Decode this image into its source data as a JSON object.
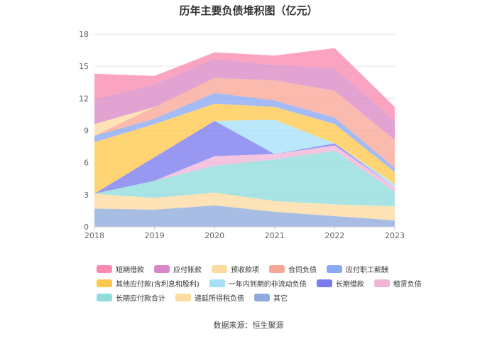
{
  "source": "数据来源：恒生聚源",
  "chart_data": {
    "type": "area",
    "stacked": true,
    "title": "历年主要负债堆积图（亿元）",
    "xlabel": "",
    "ylabel": "",
    "categories": [
      "2018",
      "2019",
      "2020",
      "2021",
      "2022",
      "2023"
    ],
    "ylim": [
      0,
      18
    ],
    "yticks": [
      0,
      3,
      6,
      9,
      12,
      15,
      18
    ],
    "grid": true,
    "legend_position": "bottom",
    "series": [
      {
        "name": "其它",
        "color": "#8faadc",
        "values": [
          1.7,
          1.6,
          2.0,
          1.4,
          1.0,
          0.6
        ]
      },
      {
        "name": "递延所得税负债",
        "color": "#fddba0",
        "values": [
          1.4,
          1.1,
          1.2,
          1.0,
          1.1,
          1.3
        ]
      },
      {
        "name": "长期应付款合计",
        "color": "#8fdcdc",
        "values": [
          0.0,
          1.6,
          2.5,
          3.9,
          5.0,
          1.4
        ]
      },
      {
        "name": "租赁负债",
        "color": "#f0b5d8",
        "values": [
          0.0,
          0.0,
          0.9,
          0.5,
          0.5,
          0.4
        ]
      },
      {
        "name": "长期借款",
        "color": "#7b7bf0",
        "values": [
          0.0,
          2.2,
          3.3,
          0.0,
          0.2,
          0.0
        ]
      },
      {
        "name": "一年内到期的非流动负债",
        "color": "#a6e0f7",
        "values": [
          0.0,
          0.0,
          0.0,
          3.2,
          0.0,
          0.3
        ]
      },
      {
        "name": "其他应付款(含利息和股利)",
        "color": "#ffc84d",
        "values": [
          4.8,
          3.1,
          1.6,
          1.2,
          1.8,
          1.1
        ]
      },
      {
        "name": "应付职工薪酬",
        "color": "#8ba8f3",
        "values": [
          0.6,
          0.5,
          1.0,
          0.6,
          0.6,
          0.4
        ]
      },
      {
        "name": "合同负债",
        "color": "#f8a697",
        "values": [
          0.0,
          1.1,
          1.4,
          1.9,
          2.5,
          2.6
        ]
      },
      {
        "name": "预收款项",
        "color": "#fddba0",
        "values": [
          1.1,
          0.0,
          0.0,
          0.0,
          0.0,
          0.0
        ]
      },
      {
        "name": "应付账款",
        "color": "#da88c5",
        "values": [
          2.3,
          2.1,
          1.8,
          1.4,
          2.1,
          1.8
        ]
      },
      {
        "name": "短期借款",
        "color": "#f88ab0",
        "values": [
          2.4,
          0.8,
          0.6,
          0.9,
          1.9,
          1.3
        ]
      }
    ],
    "legend_rows": [
      [
        "短期借款",
        "应付账款",
        "预收款项",
        "合同负债",
        "应付职工薪酬"
      ],
      [
        "其他应付款(含利息和股利)",
        "一年内到期的非流动负债",
        "长期借款",
        "租赁负债"
      ],
      [
        "长期应付款合计",
        "递延所得税负债",
        "其它"
      ]
    ]
  }
}
